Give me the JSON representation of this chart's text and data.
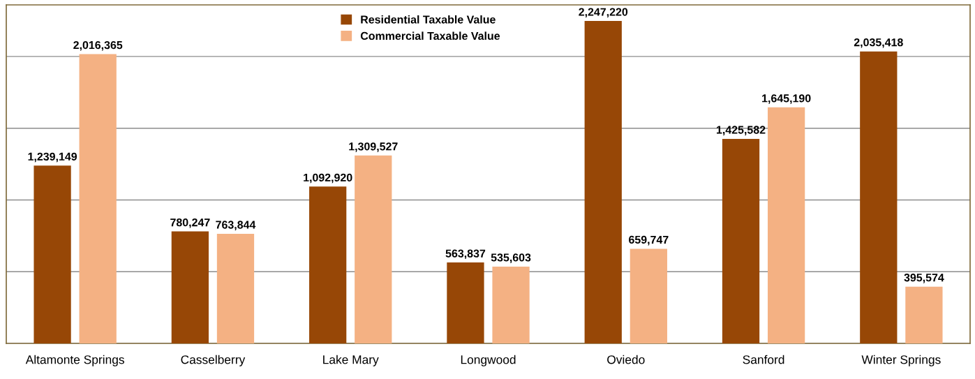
{
  "chart_data": {
    "type": "bar",
    "categories": [
      "Altamonte Springs",
      "Casselberry",
      "Lake Mary",
      "Longwood",
      "Oviedo",
      "Sanford",
      "Winter Springs"
    ],
    "series": [
      {
        "name": "Residential Taxable Value",
        "color": "#974706",
        "values": [
          1239149,
          780247,
          1092920,
          563837,
          2247220,
          1425582,
          2035418
        ],
        "value_labels": [
          "1,239,149",
          "780,247",
          "1,092,920",
          "563,837",
          "2,247,220",
          "1,425,582",
          "2,035,418"
        ]
      },
      {
        "name": "Commercial Taxable Value",
        "color": "#f4b183",
        "values": [
          2016365,
          763844,
          1309527,
          535603,
          659747,
          1645190,
          395574
        ],
        "value_labels": [
          "2,016,365",
          "763,844",
          "1,309,527",
          "535,603",
          "659,747",
          "1,645,190",
          "395,574"
        ]
      }
    ],
    "tick_labels": "x",
    "grid": "y",
    "legend": "top"
  }
}
